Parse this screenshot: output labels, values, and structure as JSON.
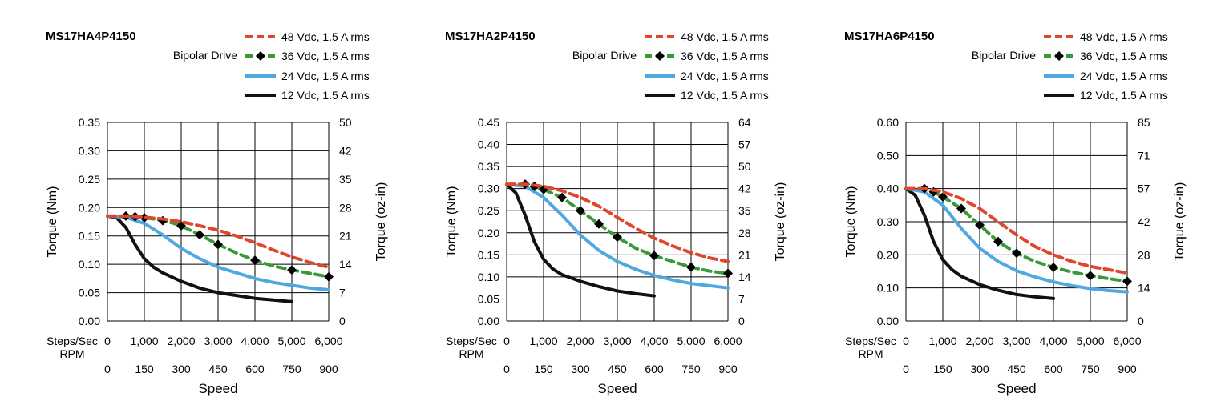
{
  "chart_data": [
    {
      "type": "line",
      "title": "MS17HA4P4150",
      "drive_label": "Bipolar Drive",
      "xlabel": "Speed",
      "ylabel": "Torque (Nm)",
      "ylabel_right": "Torque (oz-in)",
      "ylim": [
        0,
        0.35
      ],
      "y_ticks": [
        "0.00",
        "0.05",
        "0.10",
        "0.15",
        "0.20",
        "0.25",
        "0.30",
        "0.35"
      ],
      "y2_ticks": [
        "0",
        "7",
        "14",
        "21",
        "28",
        "35",
        "42",
        "50"
      ],
      "xlim": [
        0,
        6000
      ],
      "x_ticks": [
        0,
        1000,
        2000,
        3000,
        4000,
        5000,
        6000
      ],
      "x_tick_labels": [
        "0",
        "1,000",
        "2,000",
        "3,000",
        "4,000",
        "5,000",
        "6,000"
      ],
      "x_axis_row_label": "Steps/Sec",
      "x2_axis_row_label": "RPM",
      "x2_tick_labels": [
        "0",
        "150",
        "300",
        "450",
        "600",
        "750",
        "900"
      ],
      "grid": true,
      "legend_position": "top-right",
      "series": [
        {
          "name": "48 Vdc, 1.5 A rms",
          "color": "#e0462b",
          "style": "dashed",
          "markers": false,
          "x": [
            0,
            500,
            1000,
            1500,
            2000,
            2500,
            3000,
            3500,
            4000,
            4500,
            5000,
            5500,
            6000
          ],
          "y": [
            0.185,
            0.185,
            0.183,
            0.18,
            0.175,
            0.168,
            0.16,
            0.15,
            0.138,
            0.125,
            0.113,
            0.103,
            0.095
          ]
        },
        {
          "name": "36 Vdc, 1.5 A rms",
          "color": "#3a9a3a",
          "style": "dashed",
          "markers": true,
          "x": [
            0,
            500,
            750,
            1000,
            1250,
            1500,
            1750,
            2000,
            2500,
            3000,
            3500,
            4000,
            4500,
            5000,
            5500,
            6000
          ],
          "y": [
            0.185,
            0.185,
            0.184,
            0.182,
            0.18,
            0.177,
            0.173,
            0.168,
            0.152,
            0.135,
            0.12,
            0.107,
            0.097,
            0.09,
            0.084,
            0.078
          ],
          "marker_x": [
            500,
            750,
            1000,
            1500,
            2000,
            2500,
            3000,
            4000,
            5000,
            6000
          ],
          "marker_y": [
            0.185,
            0.184,
            0.182,
            0.177,
            0.168,
            0.152,
            0.135,
            0.107,
            0.09,
            0.078
          ]
        },
        {
          "name": "24 Vdc, 1.5 A rms",
          "color": "#4fa8e0",
          "style": "solid",
          "markers": false,
          "x": [
            0,
            500,
            1000,
            1500,
            2000,
            2500,
            3000,
            3500,
            4000,
            4500,
            5000,
            5500,
            6000
          ],
          "y": [
            0.185,
            0.183,
            0.172,
            0.152,
            0.128,
            0.11,
            0.095,
            0.085,
            0.075,
            0.068,
            0.063,
            0.058,
            0.055
          ]
        },
        {
          "name": "12 Vdc, 1.5 A rms",
          "color": "#111111",
          "style": "solid",
          "markers": false,
          "x": [
            0,
            250,
            500,
            750,
            1000,
            1250,
            1500,
            2000,
            2500,
            3000,
            3500,
            4000,
            4500,
            5000
          ],
          "y": [
            0.185,
            0.182,
            0.165,
            0.135,
            0.11,
            0.095,
            0.085,
            0.07,
            0.058,
            0.05,
            0.045,
            0.04,
            0.037,
            0.034
          ]
        }
      ]
    },
    {
      "type": "line",
      "title": "MS17HA2P4150",
      "drive_label": "Bipolar Drive",
      "xlabel": "Speed",
      "ylabel": "Torque (Nm)",
      "ylabel_right": "Torque (oz-in)",
      "ylim": [
        0,
        0.45
      ],
      "y_ticks": [
        "0.00",
        "0.05",
        "0.10",
        "0.15",
        "0.20",
        "0.25",
        "0.30",
        "0.35",
        "0.40",
        "0.45"
      ],
      "y2_ticks": [
        "0",
        "7",
        "14",
        "21",
        "28",
        "35",
        "42",
        "50",
        "57",
        "64"
      ],
      "xlim": [
        0,
        6000
      ],
      "x_ticks": [
        0,
        1000,
        2000,
        3000,
        4000,
        5000,
        6000
      ],
      "x_tick_labels": [
        "0",
        "1,000",
        "2,000",
        "3,000",
        "4,000",
        "5,000",
        "6,000"
      ],
      "x_axis_row_label": "Steps/Sec",
      "x2_axis_row_label": "RPM",
      "x2_tick_labels": [
        "0",
        "150",
        "300",
        "450",
        "600",
        "750",
        "900"
      ],
      "grid": true,
      "legend_position": "top-right",
      "series": [
        {
          "name": "48 Vdc, 1.5 A rms",
          "color": "#e0462b",
          "style": "dashed",
          "markers": false,
          "x": [
            0,
            500,
            1000,
            1500,
            2000,
            2500,
            3000,
            3500,
            4000,
            4500,
            5000,
            5500,
            6000
          ],
          "y": [
            0.31,
            0.31,
            0.305,
            0.295,
            0.28,
            0.26,
            0.235,
            0.21,
            0.188,
            0.17,
            0.155,
            0.143,
            0.135
          ]
        },
        {
          "name": "36 Vdc, 1.5 A rms",
          "color": "#3a9a3a",
          "style": "dashed",
          "markers": true,
          "x": [
            0,
            500,
            750,
            1000,
            1500,
            2000,
            2500,
            3000,
            3500,
            4000,
            4500,
            5000,
            5500,
            6000
          ],
          "y": [
            0.31,
            0.31,
            0.305,
            0.298,
            0.28,
            0.25,
            0.22,
            0.19,
            0.165,
            0.148,
            0.135,
            0.122,
            0.113,
            0.108
          ],
          "marker_x": [
            500,
            750,
            1000,
            1500,
            2000,
            2500,
            3000,
            4000,
            5000,
            6000
          ],
          "marker_y": [
            0.31,
            0.305,
            0.298,
            0.28,
            0.25,
            0.22,
            0.19,
            0.148,
            0.122,
            0.108
          ]
        },
        {
          "name": "24 Vdc, 1.5 A rms",
          "color": "#4fa8e0",
          "style": "solid",
          "markers": false,
          "x": [
            0,
            500,
            1000,
            1500,
            2000,
            2500,
            3000,
            3500,
            4000,
            4500,
            5000,
            5500,
            6000
          ],
          "y": [
            0.31,
            0.305,
            0.28,
            0.24,
            0.195,
            0.16,
            0.135,
            0.117,
            0.103,
            0.093,
            0.085,
            0.08,
            0.075
          ]
        },
        {
          "name": "12 Vdc, 1.5 A rms",
          "color": "#111111",
          "style": "solid",
          "markers": false,
          "x": [
            0,
            250,
            500,
            750,
            1000,
            1250,
            1500,
            2000,
            2500,
            3000,
            3500,
            4000
          ],
          "y": [
            0.31,
            0.29,
            0.24,
            0.18,
            0.14,
            0.118,
            0.105,
            0.09,
            0.078,
            0.068,
            0.062,
            0.057
          ]
        }
      ]
    },
    {
      "type": "line",
      "title": "MS17HA6P4150",
      "drive_label": "Bipolar Drive",
      "xlabel": "Speed",
      "ylabel": "Torque (Nm)",
      "ylabel_right": "Torque (oz-in)",
      "ylim": [
        0,
        0.6
      ],
      "y_ticks": [
        "0.00",
        "0.10",
        "0.20",
        "0.30",
        "0.40",
        "0.50",
        "0.60"
      ],
      "y2_ticks": [
        "0",
        "14",
        "28",
        "42",
        "57",
        "71",
        "85"
      ],
      "xlim": [
        0,
        6000
      ],
      "x_ticks": [
        0,
        1000,
        2000,
        3000,
        4000,
        5000,
        6000
      ],
      "x_tick_labels": [
        "0",
        "1,000",
        "2,000",
        "3,000",
        "4,000",
        "5,000",
        "6,000"
      ],
      "x_axis_row_label": "Steps/Sec",
      "x2_axis_row_label": "RPM",
      "x2_tick_labels": [
        "0",
        "150",
        "300",
        "450",
        "600",
        "750",
        "900"
      ],
      "grid": true,
      "legend_position": "top-right",
      "series": [
        {
          "name": "48 Vdc, 1.5 A rms",
          "color": "#e0462b",
          "style": "dashed",
          "markers": false,
          "x": [
            0,
            500,
            1000,
            1500,
            2000,
            2500,
            3000,
            3500,
            4000,
            4500,
            5000,
            5500,
            6000
          ],
          "y": [
            0.4,
            0.4,
            0.39,
            0.37,
            0.34,
            0.3,
            0.26,
            0.225,
            0.2,
            0.18,
            0.165,
            0.155,
            0.145
          ]
        },
        {
          "name": "36 Vdc, 1.5 A rms",
          "color": "#3a9a3a",
          "style": "dashed",
          "markers": true,
          "x": [
            0,
            500,
            750,
            1000,
            1500,
            2000,
            2500,
            3000,
            3500,
            4000,
            4500,
            5000,
            5500,
            6000
          ],
          "y": [
            0.4,
            0.4,
            0.39,
            0.375,
            0.34,
            0.29,
            0.24,
            0.205,
            0.18,
            0.162,
            0.148,
            0.137,
            0.128,
            0.12
          ],
          "marker_x": [
            500,
            750,
            1000,
            1500,
            2000,
            2500,
            3000,
            4000,
            5000,
            6000
          ],
          "marker_y": [
            0.4,
            0.39,
            0.375,
            0.34,
            0.29,
            0.24,
            0.205,
            0.162,
            0.137,
            0.12
          ]
        },
        {
          "name": "24 Vdc, 1.5 A rms",
          "color": "#4fa8e0",
          "style": "solid",
          "markers": false,
          "x": [
            0,
            500,
            1000,
            1500,
            2000,
            2500,
            3000,
            3500,
            4000,
            4500,
            5000,
            5500,
            6000
          ],
          "y": [
            0.4,
            0.39,
            0.35,
            0.28,
            0.22,
            0.18,
            0.152,
            0.133,
            0.118,
            0.107,
            0.098,
            0.092,
            0.088
          ]
        },
        {
          "name": "12 Vdc, 1.5 A rms",
          "color": "#111111",
          "style": "solid",
          "markers": false,
          "x": [
            0,
            250,
            500,
            750,
            1000,
            1250,
            1500,
            2000,
            2500,
            3000,
            3500,
            4000
          ],
          "y": [
            0.4,
            0.38,
            0.32,
            0.24,
            0.185,
            0.155,
            0.135,
            0.11,
            0.093,
            0.08,
            0.073,
            0.068
          ]
        }
      ]
    }
  ]
}
